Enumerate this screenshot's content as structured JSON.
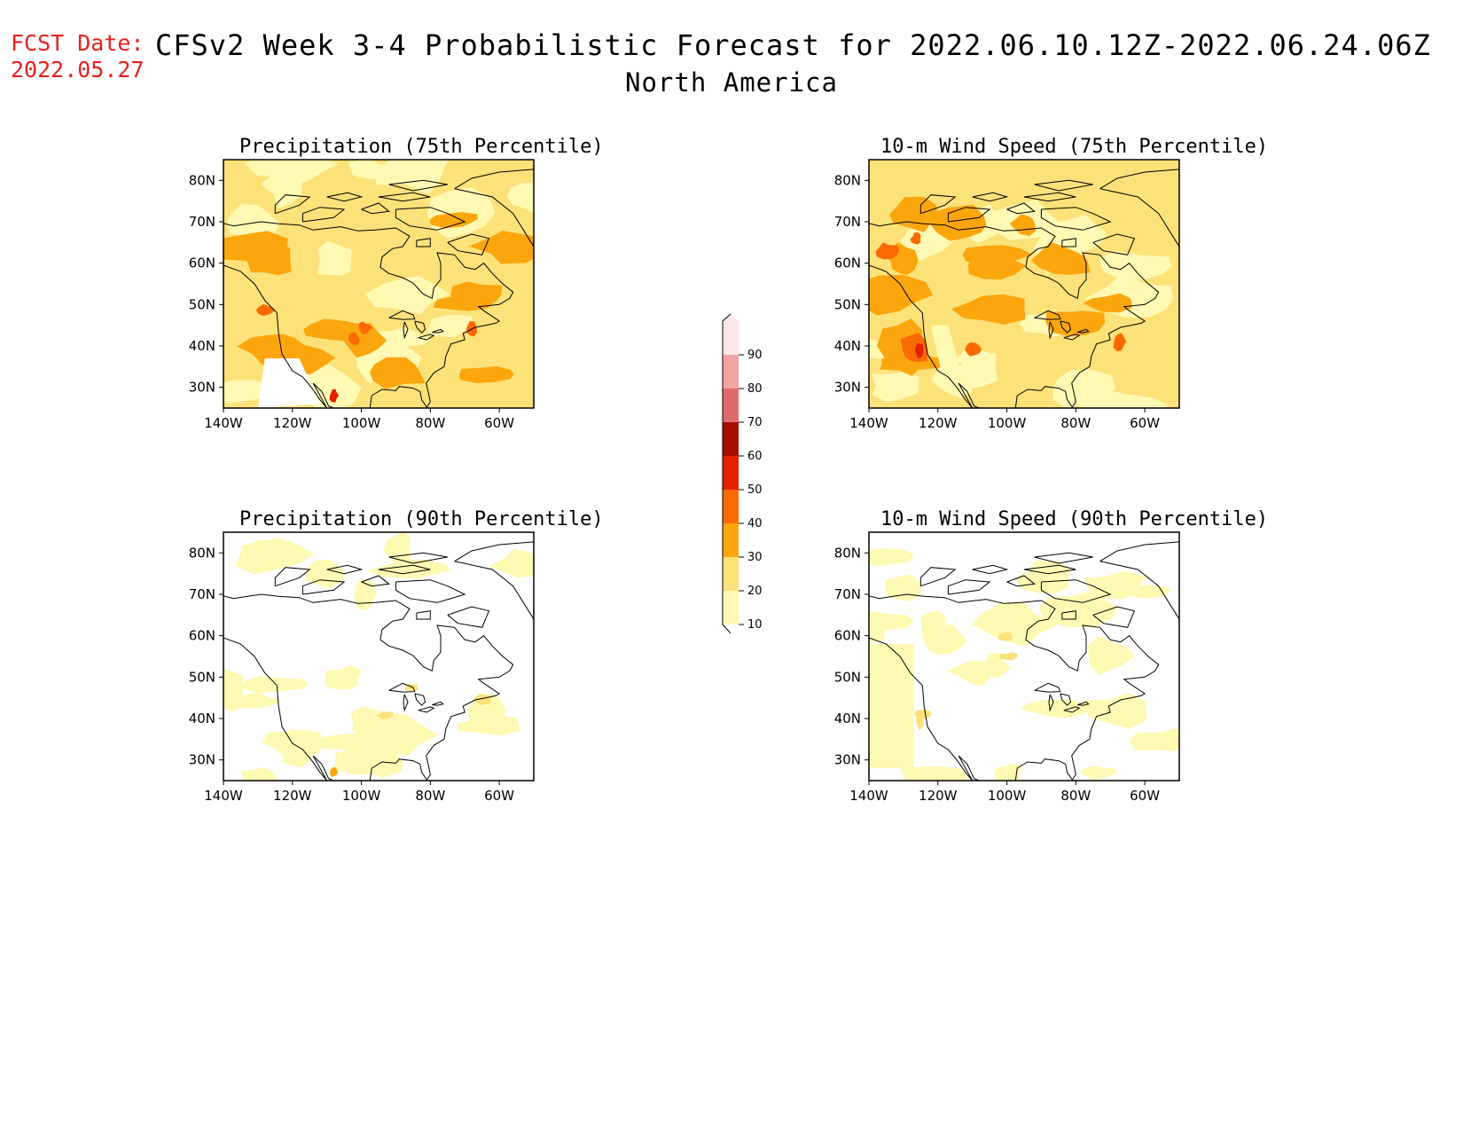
{
  "header": {
    "fcst_label": "FCST Date:",
    "fcst_date": "2022.05.27",
    "title": "CFSv2 Week 3-4 Probabilistic Forecast for 2022.06.10.12Z-2022.06.24.06Z",
    "region": "North America"
  },
  "panels": [
    {
      "id": "precip75",
      "title": "Precipitation (75th Percentile)",
      "intensity": "high",
      "variable": "precip"
    },
    {
      "id": "wind75",
      "title": "10-m Wind Speed (75th Percentile)",
      "intensity": "high",
      "variable": "wind"
    },
    {
      "id": "precip90",
      "title": "Precipitation (90th Percentile)",
      "intensity": "low",
      "variable": "precip"
    },
    {
      "id": "wind90",
      "title": "10-m Wind Speed (90th Percentile)",
      "intensity": "low",
      "variable": "wind"
    }
  ],
  "axes": {
    "lon_labels": [
      "140W",
      "120W",
      "100W",
      "80W",
      "60W"
    ],
    "lat_labels": [
      "80N",
      "70N",
      "60N",
      "50N",
      "40N",
      "30N"
    ],
    "lon_range": [
      -140,
      -50
    ],
    "lat_range": [
      25,
      85
    ]
  },
  "colorbar": {
    "levels": [
      "10",
      "20",
      "30",
      "40",
      "50",
      "60",
      "70",
      "80",
      "90"
    ],
    "colors": [
      "#fff9b3",
      "#fde27a",
      "#fca60d",
      "#fb6a00",
      "#e42000",
      "#a50c00",
      "#e06a6a",
      "#f4a3a3",
      "#fde6e6"
    ]
  }
}
